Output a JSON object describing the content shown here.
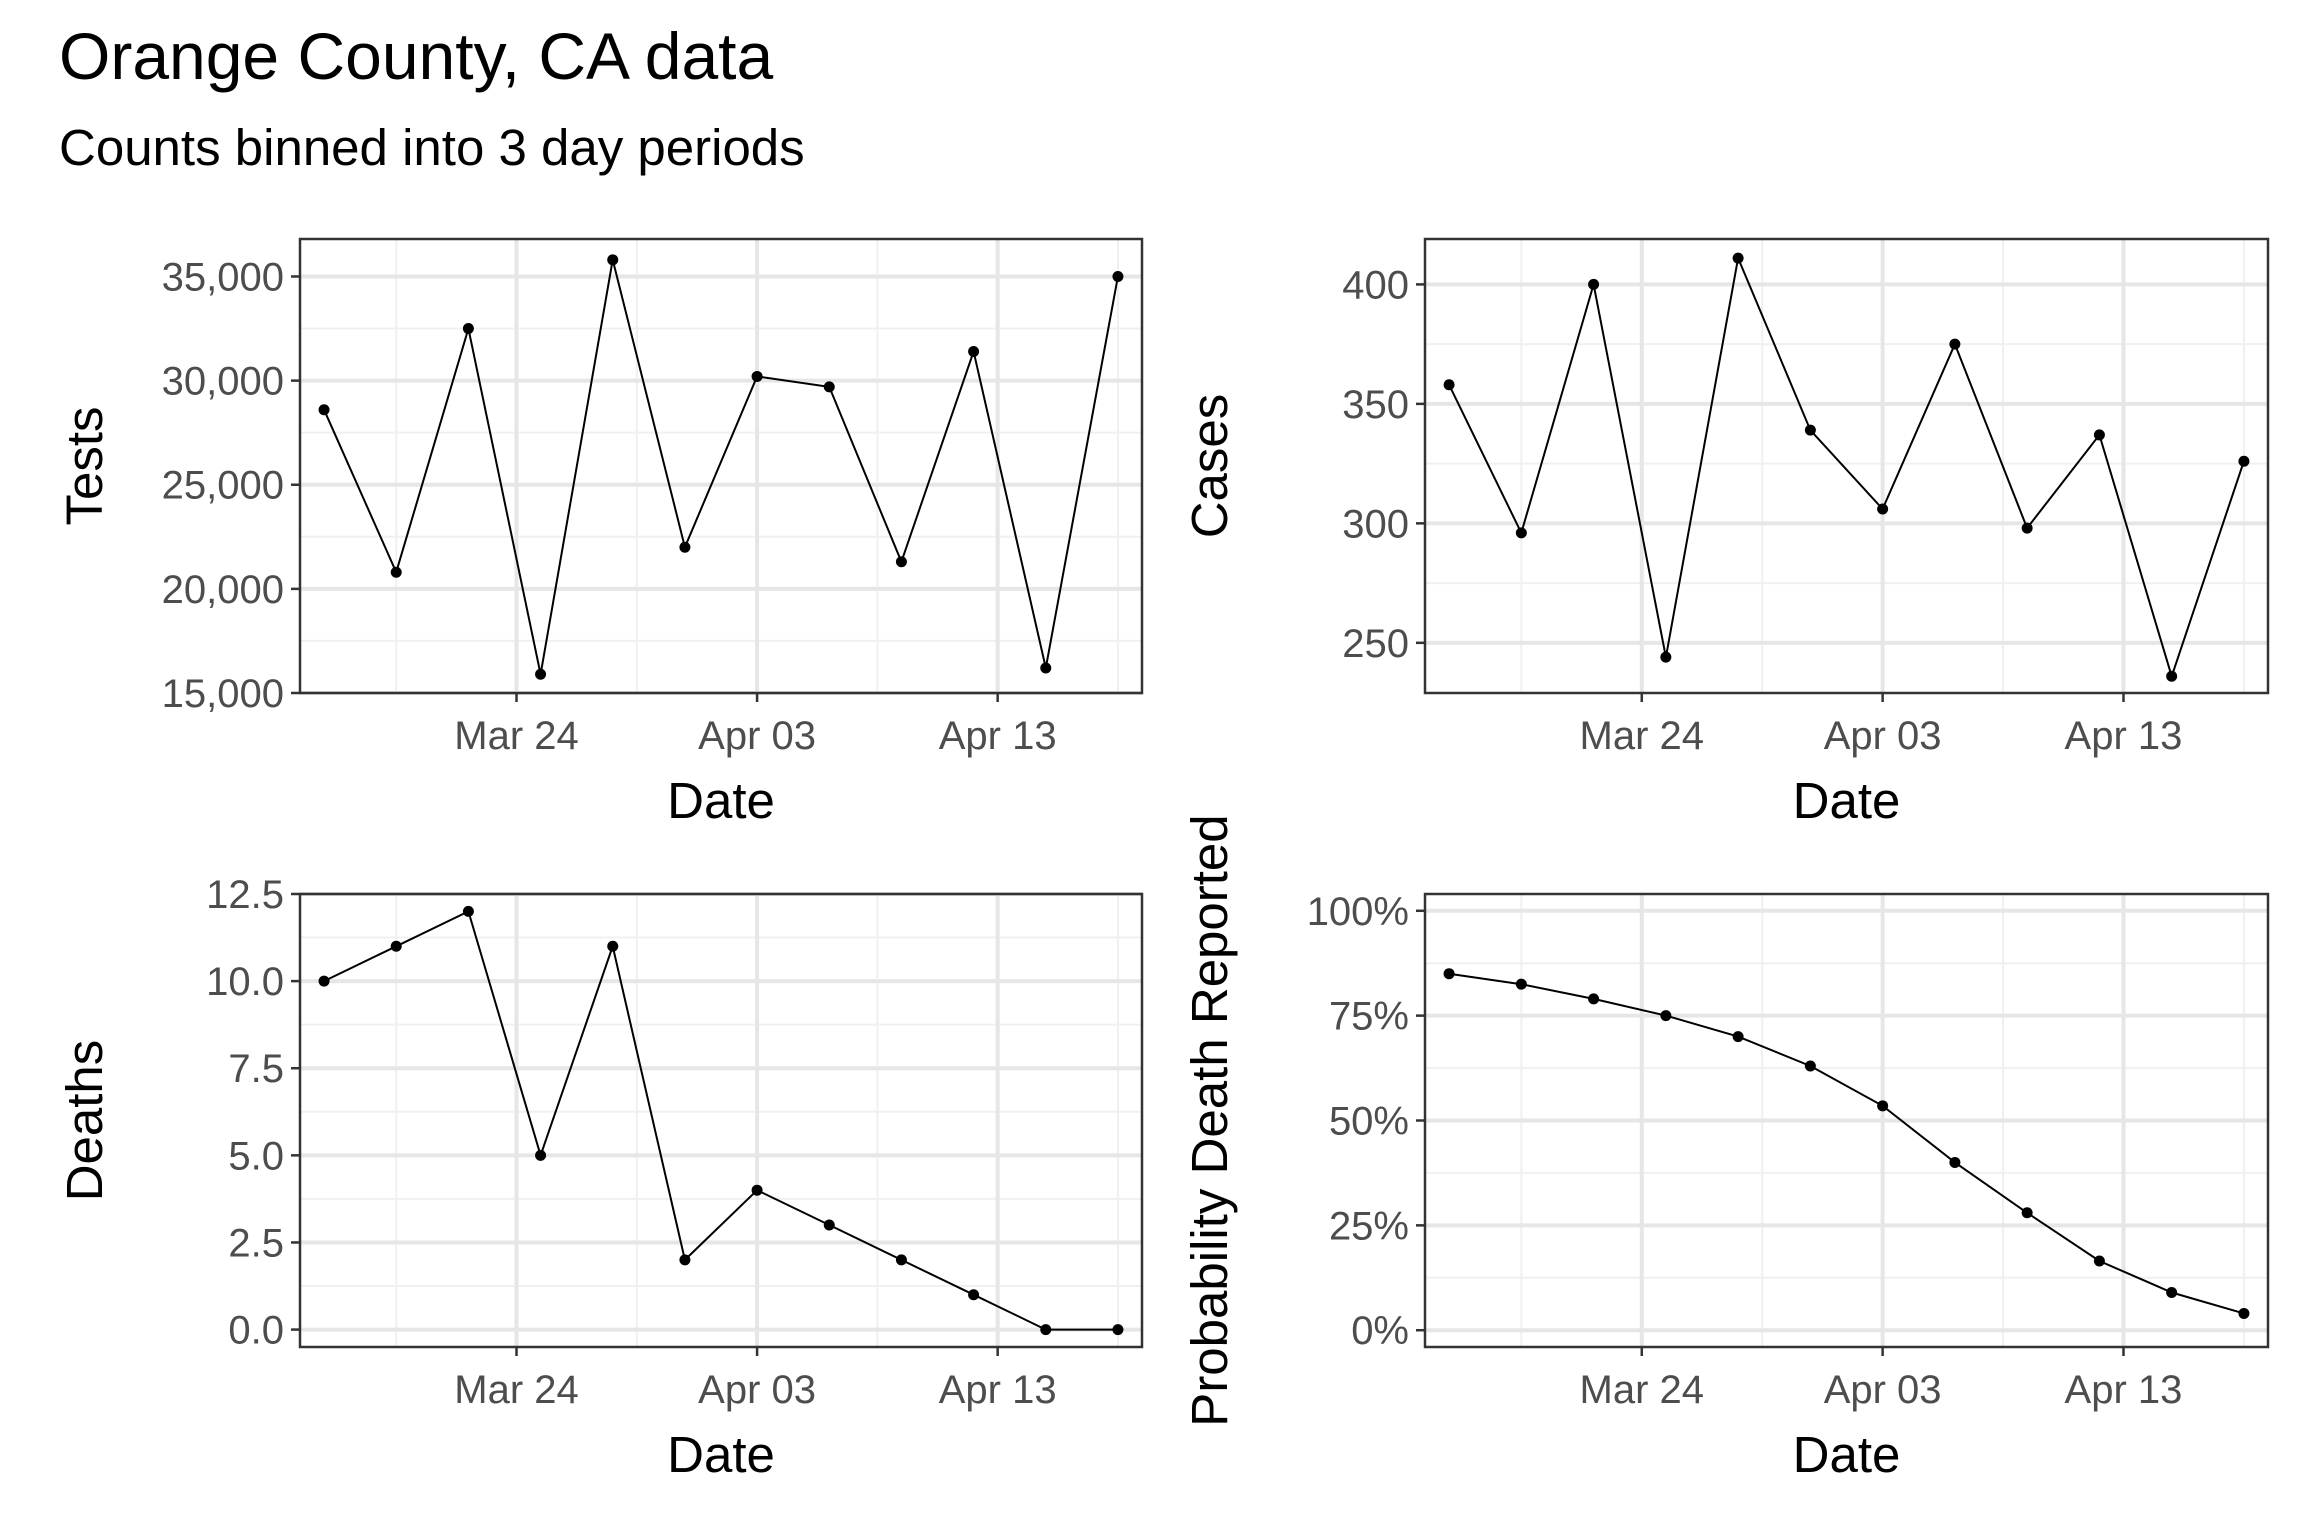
{
  "title": "Orange County, CA data",
  "subtitle": "Counts binned into 3 day periods",
  "chart_data": [
    {
      "type": "line",
      "title": "",
      "xlabel": "Date",
      "ylabel": "Tests",
      "x": [
        "2020-03-16",
        "2020-03-19",
        "2020-03-22",
        "2020-03-25",
        "2020-03-28",
        "2020-03-31",
        "2020-04-03",
        "2020-04-06",
        "2020-04-09",
        "2020-04-12",
        "2020-04-15",
        "2020-04-18"
      ],
      "y": [
        28600,
        20800,
        32500,
        15900,
        35800,
        22000,
        30200,
        29700,
        21300,
        31400,
        16200,
        35000
      ],
      "xlim": [
        "2020-03-15",
        "2020-04-19"
      ],
      "ylim": [
        15000,
        36800
      ],
      "xticks": [
        {
          "date": "2020-03-24",
          "label": "Mar 24"
        },
        {
          "date": "2020-04-03",
          "label": "Apr 03"
        },
        {
          "date": "2020-04-13",
          "label": "Apr 13"
        }
      ],
      "yticks": [
        {
          "value": 15000,
          "label": "15,000"
        },
        {
          "value": 20000,
          "label": "20,000"
        },
        {
          "value": 25000,
          "label": "25,000"
        },
        {
          "value": 30000,
          "label": "30,000"
        },
        {
          "value": 35000,
          "label": "35,000"
        }
      ],
      "grid": true
    },
    {
      "type": "line",
      "title": "",
      "xlabel": "Date",
      "ylabel": "Cases",
      "x": [
        "2020-03-16",
        "2020-03-19",
        "2020-03-22",
        "2020-03-25",
        "2020-03-28",
        "2020-03-31",
        "2020-04-03",
        "2020-04-06",
        "2020-04-09",
        "2020-04-12",
        "2020-04-15",
        "2020-04-18"
      ],
      "y": [
        358,
        296,
        400,
        244,
        411,
        339,
        306,
        375,
        298,
        337,
        236,
        326
      ],
      "xlim": [
        "2020-03-15",
        "2020-04-19"
      ],
      "ylim": [
        229,
        419
      ],
      "xticks": [
        {
          "date": "2020-03-24",
          "label": "Mar 24"
        },
        {
          "date": "2020-04-03",
          "label": "Apr 03"
        },
        {
          "date": "2020-04-13",
          "label": "Apr 13"
        }
      ],
      "yticks": [
        {
          "value": 250,
          "label": "250"
        },
        {
          "value": 300,
          "label": "300"
        },
        {
          "value": 350,
          "label": "350"
        },
        {
          "value": 400,
          "label": "400"
        }
      ],
      "grid": true
    },
    {
      "type": "line",
      "title": "",
      "xlabel": "Date",
      "ylabel": "Deaths",
      "x": [
        "2020-03-16",
        "2020-03-19",
        "2020-03-22",
        "2020-03-25",
        "2020-03-28",
        "2020-03-31",
        "2020-04-03",
        "2020-04-06",
        "2020-04-09",
        "2020-04-12",
        "2020-04-15",
        "2020-04-18"
      ],
      "y": [
        10,
        11,
        12,
        5,
        11,
        2,
        4,
        3,
        2,
        1,
        0,
        0
      ],
      "xlim": [
        "2020-03-15",
        "2020-04-19"
      ],
      "ylim": [
        -0.5,
        12.5
      ],
      "xticks": [
        {
          "date": "2020-03-24",
          "label": "Mar 24"
        },
        {
          "date": "2020-04-03",
          "label": "Apr 03"
        },
        {
          "date": "2020-04-13",
          "label": "Apr 13"
        }
      ],
      "yticks": [
        {
          "value": 0,
          "label": "0.0"
        },
        {
          "value": 2.5,
          "label": "2.5"
        },
        {
          "value": 5,
          "label": "5.0"
        },
        {
          "value": 7.5,
          "label": "7.5"
        },
        {
          "value": 10,
          "label": "10.0"
        },
        {
          "value": 12.5,
          "label": "12.5"
        }
      ],
      "grid": true
    },
    {
      "type": "line",
      "title": "",
      "xlabel": "Date",
      "ylabel": "Probability Death Reported",
      "x": [
        "2020-03-16",
        "2020-03-19",
        "2020-03-22",
        "2020-03-25",
        "2020-03-28",
        "2020-03-31",
        "2020-04-03",
        "2020-04-06",
        "2020-04-09",
        "2020-04-12",
        "2020-04-15",
        "2020-04-18"
      ],
      "y": [
        0.85,
        0.825,
        0.79,
        0.75,
        0.7,
        0.63,
        0.535,
        0.4,
        0.28,
        0.165,
        0.09,
        0.04
      ],
      "xlim": [
        "2020-03-15",
        "2020-04-19"
      ],
      "ylim": [
        -0.04,
        1.04
      ],
      "xticks": [
        {
          "date": "2020-03-24",
          "label": "Mar 24"
        },
        {
          "date": "2020-04-03",
          "label": "Apr 03"
        },
        {
          "date": "2020-04-13",
          "label": "Apr 13"
        }
      ],
      "yticks": [
        {
          "value": 0,
          "label": "0%"
        },
        {
          "value": 0.25,
          "label": "25%"
        },
        {
          "value": 0.5,
          "label": "50%"
        },
        {
          "value": 0.75,
          "label": "75%"
        },
        {
          "value": 1.0,
          "label": "100%"
        }
      ],
      "grid": true
    }
  ]
}
